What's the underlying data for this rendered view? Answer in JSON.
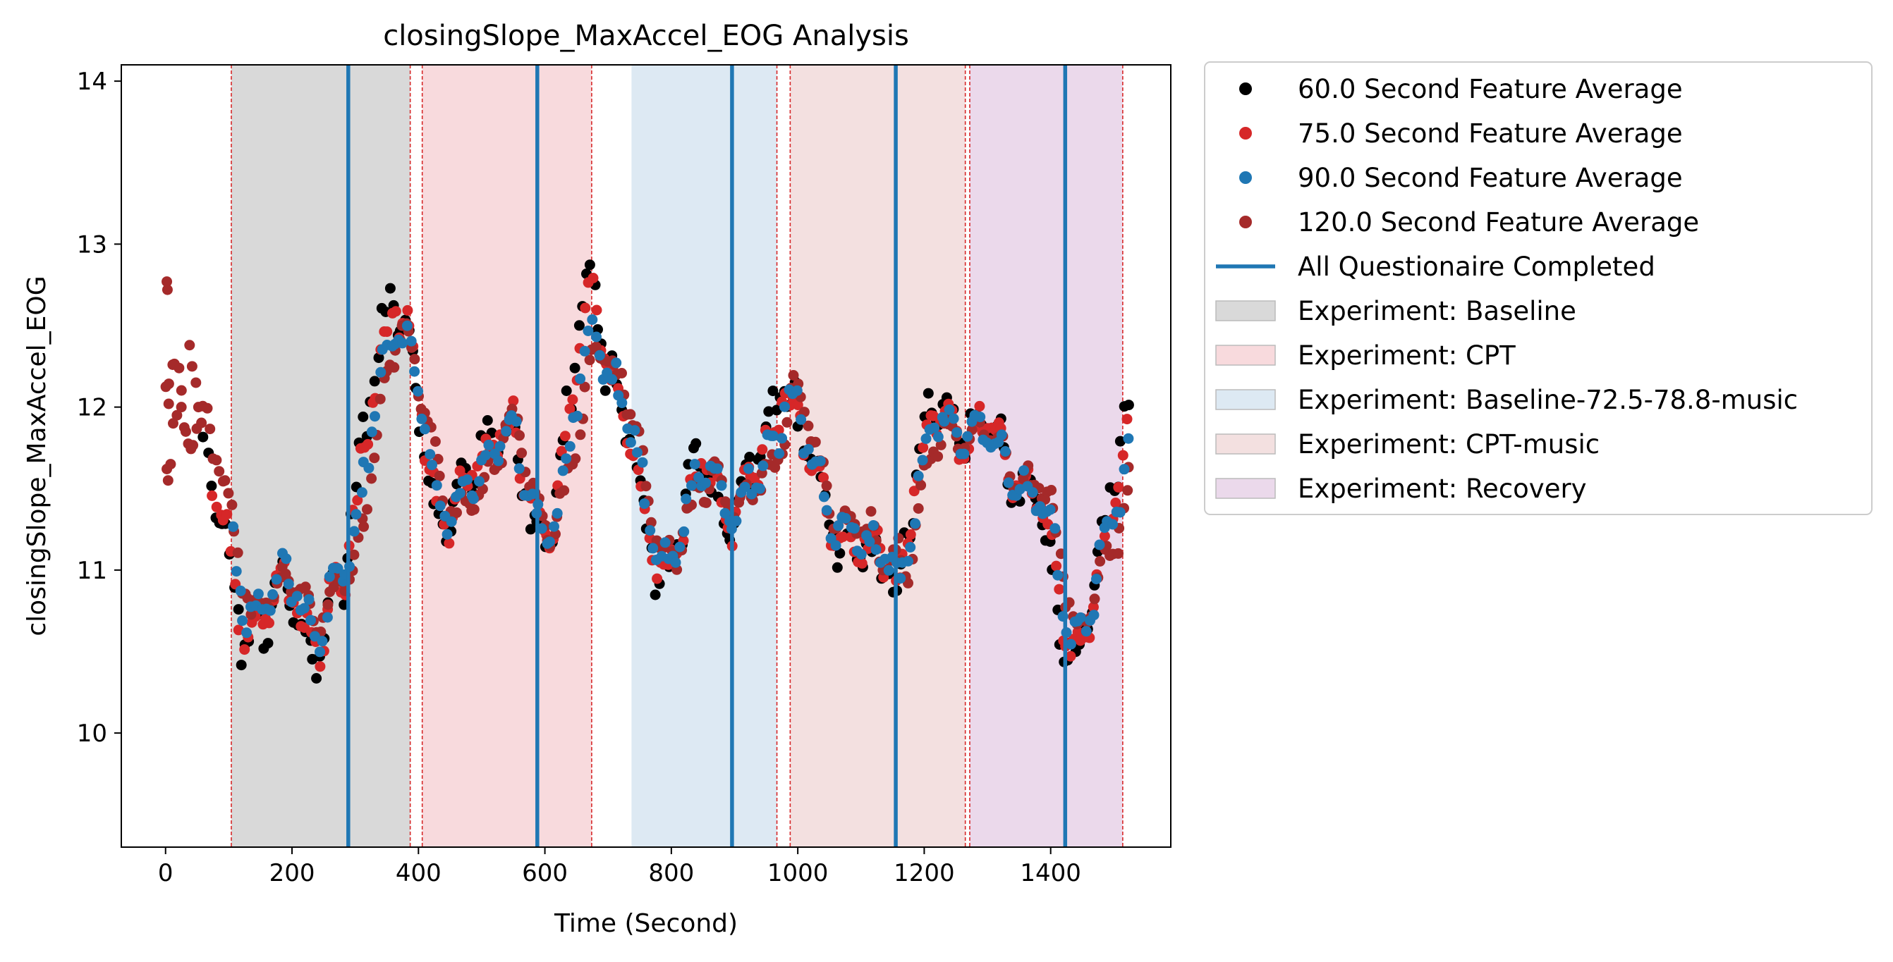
{
  "chart_data": {
    "type": "scatter",
    "title": "closingSlope_MaxAccel_EOG Analysis",
    "xlabel": "Time (Second)",
    "ylabel": "closingSlope_MaxAccel_EOG",
    "xlim": [
      -70,
      1590
    ],
    "ylim": [
      9.3,
      14.1
    ],
    "xticks": [
      0,
      200,
      400,
      600,
      800,
      1000,
      1200,
      1400
    ],
    "xtick_labels": [
      "0",
      "200",
      "400",
      "600",
      "800",
      "1000",
      "1200",
      "1400"
    ],
    "yticks": [
      10,
      11,
      12,
      13,
      14
    ],
    "ytick_labels": [
      "10",
      "11",
      "12",
      "13",
      "14"
    ],
    "grid": false,
    "legend_position": "outside right, top",
    "legend": [
      {
        "label": "60.0 Second Feature Average",
        "kind": "marker",
        "color": "#000000"
      },
      {
        "label": "75.0 Second Feature Average",
        "kind": "marker",
        "color": "#d62728"
      },
      {
        "label": "90.0 Second Feature Average",
        "kind": "marker",
        "color": "#1f77b4"
      },
      {
        "label": "120.0 Second Feature Average",
        "kind": "marker",
        "color": "#a52a2a"
      },
      {
        "label": "All Questionaire Completed",
        "kind": "line",
        "color": "#1f77b4"
      },
      {
        "label": "Experiment: Baseline",
        "kind": "patch",
        "color": "#d9d9d9"
      },
      {
        "label": "Experiment: CPT",
        "kind": "patch",
        "color": "#f8dadd"
      },
      {
        "label": "Experiment: Baseline-72.5-78.8-music",
        "kind": "patch",
        "color": "#dde9f3"
      },
      {
        "label": "Experiment: CPT-music",
        "kind": "patch",
        "color": "#f3e0e0"
      },
      {
        "label": "Experiment: Recovery",
        "kind": "patch",
        "color": "#ebd9eb"
      }
    ],
    "regions": [
      {
        "experiment": "Baseline",
        "x0": 104,
        "x1": 387,
        "color": "#d9d9d9"
      },
      {
        "experiment": "CPT",
        "x0": 406,
        "x1": 674,
        "color": "#f8dadd"
      },
      {
        "experiment": "Baseline-72.5-78.8-music",
        "x0": 737,
        "x1": 967,
        "color": "#dde9f3"
      },
      {
        "experiment": "CPT-music",
        "x0": 988,
        "x1": 1265,
        "color": "#f3e0e0"
      },
      {
        "experiment": "Recovery",
        "x0": 1272,
        "x1": 1514,
        "color": "#ebd9eb"
      }
    ],
    "boundary_lines_x": [
      104,
      387,
      406,
      674,
      967,
      988,
      1265,
      1272,
      1514
    ],
    "questionnaire_lines_x": [
      289,
      588,
      896,
      1155,
      1423
    ],
    "anchors": [
      [
        0,
        12.2
      ],
      [
        15,
        11.9
      ],
      [
        30,
        11.95
      ],
      [
        45,
        12.0
      ],
      [
        60,
        11.7
      ],
      [
        75,
        11.45
      ],
      [
        90,
        11.2
      ],
      [
        105,
        10.95
      ],
      [
        120,
        10.75
      ],
      [
        140,
        10.85
      ],
      [
        160,
        10.8
      ],
      [
        180,
        10.9
      ],
      [
        200,
        10.85
      ],
      [
        220,
        10.75
      ],
      [
        240,
        10.7
      ],
      [
        260,
        10.85
      ],
      [
        280,
        10.95
      ],
      [
        295,
        11.3
      ],
      [
        310,
        11.8
      ],
      [
        325,
        12.1
      ],
      [
        340,
        12.3
      ],
      [
        355,
        12.45
      ],
      [
        370,
        12.35
      ],
      [
        385,
        12.2
      ],
      [
        400,
        12.0
      ],
      [
        415,
        11.6
      ],
      [
        430,
        11.4
      ],
      [
        445,
        11.25
      ],
      [
        460,
        11.35
      ],
      [
        480,
        11.55
      ],
      [
        500,
        11.75
      ],
      [
        520,
        11.85
      ],
      [
        540,
        11.8
      ],
      [
        560,
        11.5
      ],
      [
        580,
        11.35
      ],
      [
        595,
        11.3
      ],
      [
        610,
        11.4
      ],
      [
        625,
        11.6
      ],
      [
        640,
        11.9
      ],
      [
        655,
        12.3
      ],
      [
        670,
        12.55
      ],
      [
        685,
        12.4
      ],
      [
        700,
        12.2
      ],
      [
        715,
        12.0
      ],
      [
        730,
        11.75
      ],
      [
        745,
        11.45
      ],
      [
        760,
        11.25
      ],
      [
        775,
        11.15
      ],
      [
        790,
        11.1
      ],
      [
        810,
        11.25
      ],
      [
        830,
        11.45
      ],
      [
        850,
        11.65
      ],
      [
        870,
        11.55
      ],
      [
        885,
        11.4
      ],
      [
        900,
        11.35
      ],
      [
        915,
        11.45
      ],
      [
        930,
        11.55
      ],
      [
        945,
        11.7
      ],
      [
        960,
        11.9
      ],
      [
        975,
        12.15
      ],
      [
        990,
        12.0
      ],
      [
        1005,
        11.75
      ],
      [
        1020,
        11.55
      ],
      [
        1035,
        11.4
      ],
      [
        1050,
        11.35
      ],
      [
        1065,
        11.3
      ],
      [
        1080,
        11.25
      ],
      [
        1095,
        11.15
      ],
      [
        1110,
        11.05
      ],
      [
        1125,
        11.1
      ],
      [
        1140,
        11.15
      ],
      [
        1155,
        11.0
      ],
      [
        1170,
        11.3
      ],
      [
        1185,
        11.5
      ],
      [
        1200,
        11.75
      ],
      [
        1215,
        11.9
      ],
      [
        1230,
        11.95
      ],
      [
        1245,
        11.9
      ],
      [
        1260,
        11.85
      ],
      [
        1280,
        11.8
      ],
      [
        1300,
        11.75
      ],
      [
        1320,
        11.7
      ],
      [
        1340,
        11.6
      ],
      [
        1360,
        11.5
      ],
      [
        1380,
        11.35
      ],
      [
        1395,
        11.15
      ],
      [
        1410,
        10.85
      ],
      [
        1425,
        10.65
      ],
      [
        1440,
        10.7
      ],
      [
        1455,
        10.8
      ],
      [
        1470,
        10.95
      ],
      [
        1485,
        11.15
      ],
      [
        1500,
        11.45
      ],
      [
        1515,
        11.8
      ],
      [
        1525,
        12.0
      ]
    ],
    "series": [
      {
        "name": "60.0 Second Feature Average",
        "color": "#000000",
        "lag": 0,
        "amp": 1.18,
        "noise": 0.1,
        "xmin": 60,
        "xmax": 1525,
        "step": 6
      },
      {
        "name": "75.0 Second Feature Average",
        "color": "#d62728",
        "lag": 4,
        "amp": 1.1,
        "noise": 0.08,
        "xmin": 75,
        "xmax": 1525,
        "step": 6
      },
      {
        "name": "120.0 Second Feature Average",
        "color": "#a52a2a",
        "lag": 18,
        "amp": 0.95,
        "noise": 0.04,
        "xmin": 0,
        "xmax": 1525,
        "step": 5
      },
      {
        "name": "90.0 Second Feature Average",
        "color": "#1f77b4",
        "lag": 8,
        "amp": 1.0,
        "noise": 0.06,
        "xmin": 105,
        "xmax": 1525,
        "step": 6
      }
    ]
  }
}
